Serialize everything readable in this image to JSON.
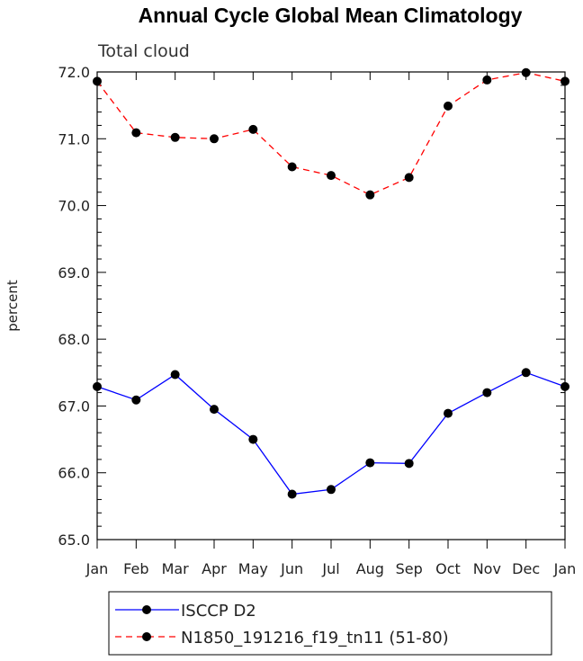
{
  "chart_data": {
    "type": "line",
    "title": "Annual Cycle Global Mean Climatology",
    "subtitle": "Total cloud",
    "xlabel": "",
    "ylabel": "percent",
    "categories": [
      "Jan",
      "Feb",
      "Mar",
      "Apr",
      "May",
      "Jun",
      "Jul",
      "Aug",
      "Sep",
      "Oct",
      "Nov",
      "Dec",
      "Jan"
    ],
    "ylim": [
      65.0,
      72.0
    ],
    "yticks": [
      "65.0",
      "66.0",
      "67.0",
      "68.0",
      "69.0",
      "70.0",
      "71.0",
      "72.0"
    ],
    "grid": false,
    "legend_position": "bottom",
    "series": [
      {
        "name": "ISCCP D2",
        "color": "#0000ff",
        "line_style": "solid",
        "marker": "filled-circle",
        "values": [
          67.29,
          67.09,
          67.47,
          66.95,
          66.5,
          65.68,
          65.75,
          66.15,
          66.14,
          66.89,
          67.2,
          67.5,
          67.29
        ]
      },
      {
        "name": "N1850_191216_f19_tn11 (51-80)",
        "color": "#ff0000",
        "line_style": "dashed",
        "marker": "filled-circle",
        "values": [
          71.86,
          71.09,
          71.02,
          71.0,
          71.14,
          70.58,
          70.45,
          70.16,
          70.42,
          71.49,
          71.88,
          71.99,
          71.86
        ]
      }
    ]
  }
}
